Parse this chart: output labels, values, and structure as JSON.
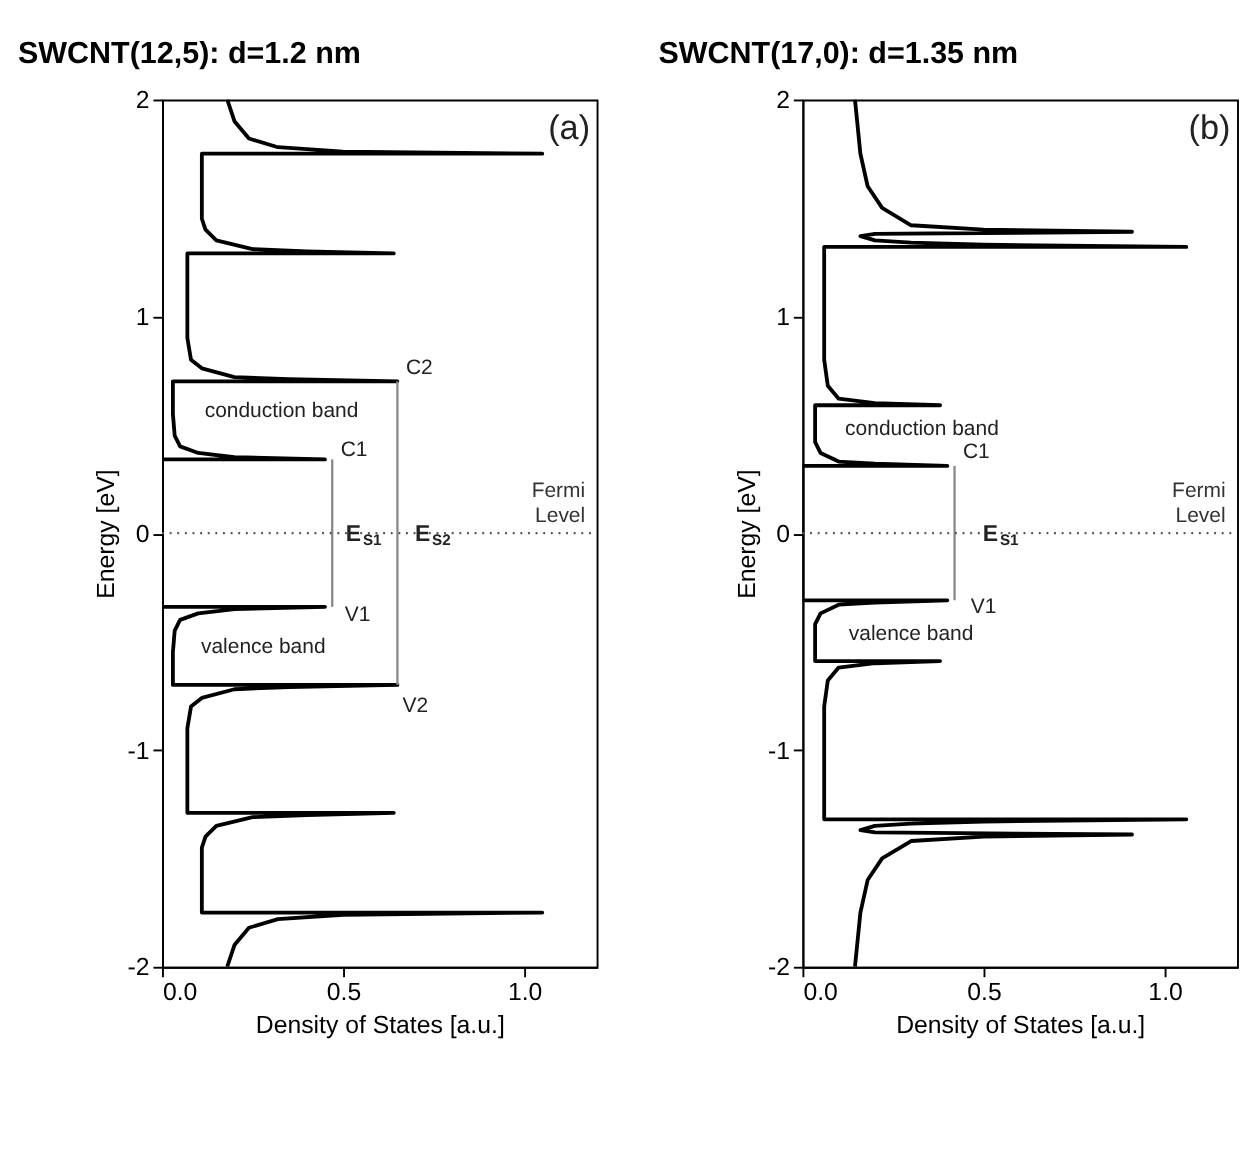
{
  "chart_data": [
    {
      "type": "line",
      "title": "SWCNT(12,5): d=1.2 nm",
      "xlabel": "Density of States [a.u.]",
      "ylabel": "Energy [eV]",
      "xlim": [
        0,
        1.2
      ],
      "ylim": [
        -2,
        2
      ],
      "xticks": [
        {
          "value": 0,
          "label": "0.0"
        },
        {
          "value": 0.5,
          "label": "0.5"
        },
        {
          "value": 1,
          "label": "1.0"
        }
      ],
      "yticks": [
        -2,
        -1,
        0,
        1,
        2
      ],
      "series": [
        {
          "color": "#000000",
          "x": [
            0.18,
            0.2,
            0.24,
            0.32,
            0.5,
            1.05,
            0.11,
            0.11,
            0.12,
            0.15,
            0.25,
            0.4,
            0.64,
            0.07,
            0.07,
            0.08,
            0.11,
            0.2,
            0.35,
            0.65,
            0.03,
            0.03,
            0.035,
            0.05,
            0.1,
            0.2,
            0.45,
            0,
            0,
            0.45,
            0.2,
            0.1,
            0.05,
            0.035,
            0.03,
            0.03,
            0.65,
            0.35,
            0.2,
            0.11,
            0.08,
            0.07,
            0.07,
            0.64,
            0.4,
            0.25,
            0.15,
            0.12,
            0.11,
            0.11,
            1.05,
            0.5,
            0.32,
            0.24,
            0.2,
            0.18
          ],
          "values": [
            -2,
            -1.9,
            -1.82,
            -1.78,
            -1.76,
            -1.75,
            -1.75,
            -1.45,
            -1.4,
            -1.35,
            -1.31,
            -1.3,
            -1.29,
            -1.29,
            -0.9,
            -0.8,
            -0.76,
            -0.72,
            -0.71,
            -0.7,
            -0.7,
            -0.55,
            -0.45,
            -0.4,
            -0.37,
            -0.35,
            -0.34,
            -0.34,
            0.34,
            0.34,
            0.35,
            0.37,
            0.4,
            0.45,
            0.55,
            0.7,
            0.7,
            0.71,
            0.72,
            0.76,
            0.8,
            0.9,
            1.29,
            1.29,
            1.3,
            1.31,
            1.35,
            1.4,
            1.45,
            1.75,
            1.75,
            1.76,
            1.78,
            1.82,
            1.9,
            2
          ]
        },
        {
          "color": "#888888",
          "x": [
            0.47,
            0.47
          ],
          "values": [
            -0.34,
            0.34
          ]
        },
        {
          "color": "#888888",
          "x": [
            0.65,
            0.65
          ],
          "values": [
            -0.7,
            0.7
          ]
        }
      ],
      "ref_lines": [
        {
          "axis": "y",
          "value": 0,
          "label": "Fermi Level",
          "line_style": "dotted",
          "color": "#555555"
        }
      ],
      "annotations": [
        "(a)",
        "conduction band",
        "valence band",
        "C1",
        "C2",
        "V1",
        "V2",
        "E$_{S1}$",
        "E$_{S2}$"
      ]
    },
    {
      "type": "line",
      "title": "SWCNT(17,0): d=1.35 nm",
      "xlabel": "Density of States [a.u.]",
      "ylabel": "Energy [eV]",
      "xlim": [
        0,
        1.2
      ],
      "ylim": [
        -2,
        2
      ],
      "xticks": [
        {
          "value": 0,
          "label": "0.0"
        },
        {
          "value": 0.5,
          "label": "0.5"
        },
        {
          "value": 1,
          "label": "1.0"
        }
      ],
      "yticks": [
        -2,
        -1,
        0,
        1,
        2
      ],
      "series": [
        {
          "color": "#000000",
          "x": [
            0.145,
            0.16,
            0.18,
            0.22,
            0.3,
            0.5,
            0.91,
            0.2,
            0.16,
            0.2,
            0.3,
            0.5,
            1.06,
            0.06,
            0.06,
            0.07,
            0.1,
            0.2,
            0.38,
            0.035,
            0.035,
            0.05,
            0.1,
            0.2,
            0.4,
            0,
            0,
            0.4,
            0.2,
            0.1,
            0.05,
            0.035,
            0.035,
            0.38,
            0.2,
            0.1,
            0.07,
            0.06,
            0.06,
            1.06,
            0.5,
            0.3,
            0.2,
            0.16,
            0.2,
            0.91,
            0.5,
            0.3,
            0.22,
            0.18,
            0.16,
            0.145
          ],
          "values": [
            -2,
            -1.75,
            -1.6,
            -1.5,
            -1.42,
            -1.4,
            -1.39,
            -1.38,
            -1.37,
            -1.35,
            -1.34,
            -1.33,
            -1.32,
            -1.32,
            -0.8,
            -0.68,
            -0.62,
            -0.6,
            -0.59,
            -0.59,
            -0.42,
            -0.37,
            -0.33,
            -0.32,
            -0.31,
            -0.31,
            0.31,
            0.31,
            0.32,
            0.33,
            0.37,
            0.42,
            0.59,
            0.59,
            0.6,
            0.62,
            0.68,
            0.8,
            1.32,
            1.32,
            1.33,
            1.34,
            1.35,
            1.37,
            1.38,
            1.39,
            1.4,
            1.42,
            1.5,
            1.6,
            1.75,
            2
          ]
        },
        {
          "color": "#888888",
          "x": [
            0.42,
            0.42
          ],
          "values": [
            -0.31,
            0.31
          ]
        }
      ],
      "ref_lines": [
        {
          "axis": "y",
          "value": 0,
          "label": "Fermi Level",
          "line_style": "dotted",
          "color": "#555555"
        }
      ],
      "annotations": [
        "(b)",
        "conduction band",
        "valence band",
        "C1",
        "V1",
        "E$_{S1}$"
      ]
    }
  ]
}
